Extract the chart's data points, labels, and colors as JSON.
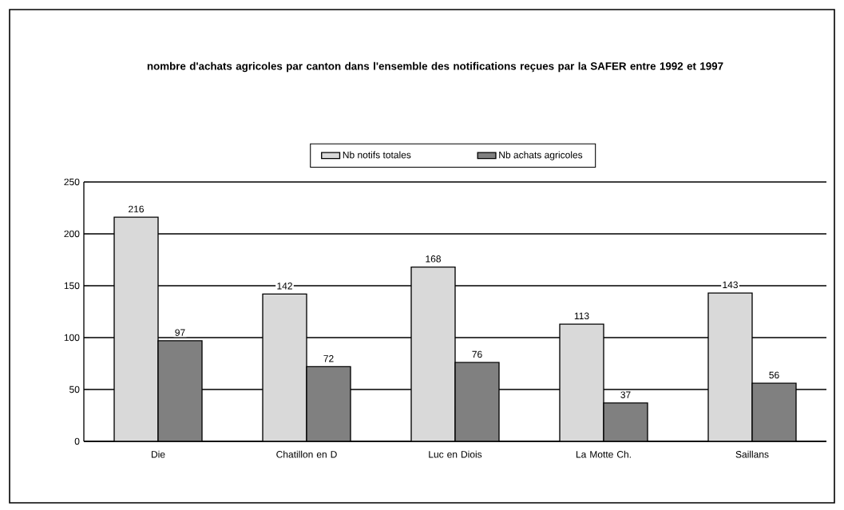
{
  "chart_data": {
    "type": "bar",
    "title": "nombre d'achats agricoles par canton dans l'ensemble des notifications reçues par la SAFER entre 1992 et 1997",
    "categories": [
      "Die",
      "Chatillon en D",
      "Luc en Diois",
      "La Motte Ch.",
      "Saillans"
    ],
    "series": [
      {
        "name": "Nb notifs totales",
        "color": "#d9d9d9",
        "values": [
          216,
          142,
          168,
          113,
          143
        ]
      },
      {
        "name": "Nb achats agricoles",
        "color": "#808080",
        "values": [
          97,
          72,
          76,
          37,
          56
        ]
      }
    ],
    "ylim": [
      0,
      250
    ],
    "yticks": [
      0,
      50,
      100,
      150,
      200,
      250
    ],
    "grid": "y",
    "legend": "top",
    "data_labels": true
  }
}
